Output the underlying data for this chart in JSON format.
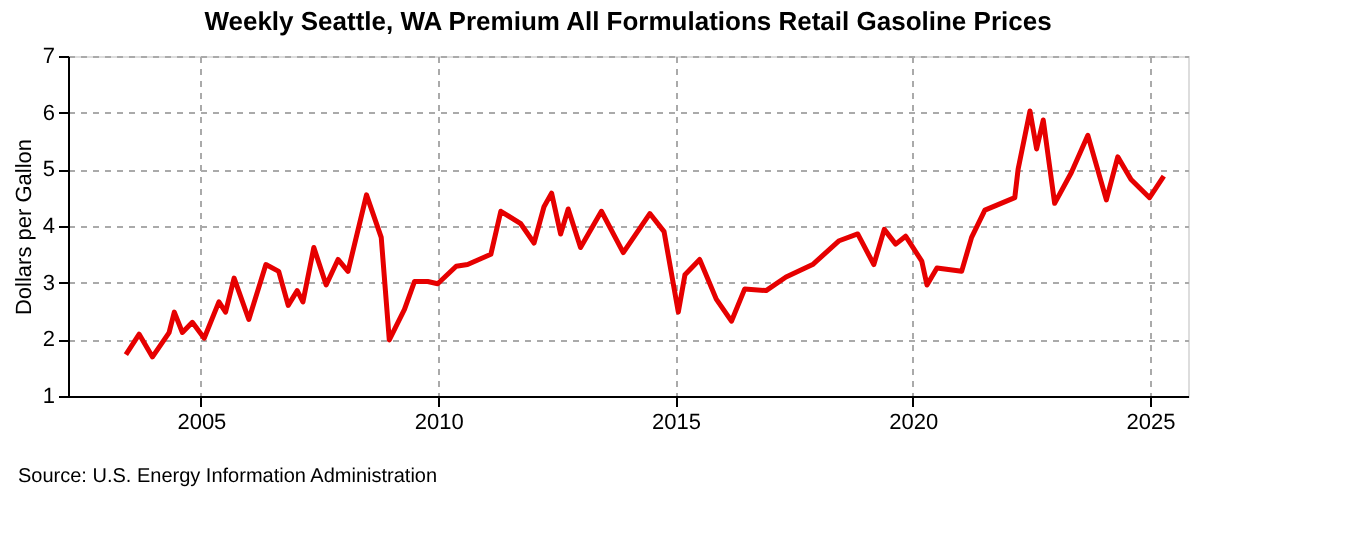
{
  "chart_data": {
    "type": "line",
    "title": "Weekly Seattle, WA Premium All Formulations Retail Gasoline Prices",
    "ylabel": "Dollars per Gallon",
    "annotations": [
      "Source: U.S. Energy Information Administration"
    ],
    "xlim": [
      2002.2,
      2025.8
    ],
    "xticks": [
      2005,
      2010,
      2015,
      2020,
      2025
    ],
    "ylim": [
      1,
      7
    ],
    "yticks": [
      1,
      2,
      3,
      4,
      5,
      6,
      7
    ],
    "grid": true,
    "marker": "none",
    "line_style": "solid",
    "series": [
      {
        "color": "#e60000",
        "x": [
          2003.42,
          2003.7,
          2003.98,
          2004.33,
          2004.44,
          2004.61,
          2004.82,
          2005.07,
          2005.38,
          2005.52,
          2005.7,
          2006.01,
          2006.37,
          2006.64,
          2006.84,
          2007.03,
          2007.15,
          2007.38,
          2007.64,
          2007.89,
          2008.1,
          2008.49,
          2008.8,
          2008.97,
          2009.29,
          2009.5,
          2009.78,
          2009.99,
          2010.38,
          2010.62,
          2011.11,
          2011.32,
          2011.74,
          2012.02,
          2012.23,
          2012.39,
          2012.58,
          2012.74,
          2013.0,
          2013.44,
          2013.9,
          2014.46,
          2014.76,
          2015.06,
          2015.2,
          2015.51,
          2015.86,
          2016.18,
          2016.46,
          2016.91,
          2017.33,
          2017.89,
          2018.45,
          2018.84,
          2019.18,
          2019.4,
          2019.64,
          2019.85,
          2020.19,
          2020.3,
          2020.51,
          2021.03,
          2021.24,
          2021.52,
          2022.15,
          2022.22,
          2022.47,
          2022.61,
          2022.75,
          2022.99,
          2023.34,
          2023.69,
          2024.08,
          2024.32,
          2024.6,
          2024.99,
          2025.29
        ],
        "values": [
          1.73,
          2.09,
          1.69,
          2.12,
          2.48,
          2.12,
          2.3,
          2.02,
          2.66,
          2.48,
          3.08,
          2.35,
          3.32,
          3.2,
          2.6,
          2.86,
          2.66,
          3.62,
          2.96,
          3.41,
          3.2,
          4.55,
          3.8,
          1.99,
          2.53,
          3.02,
          3.02,
          2.98,
          3.29,
          3.32,
          3.5,
          4.26,
          4.04,
          3.7,
          4.34,
          4.58,
          3.86,
          4.3,
          3.62,
          4.26,
          3.53,
          4.22,
          3.9,
          2.48,
          3.14,
          3.41,
          2.71,
          2.32,
          2.89,
          2.86,
          3.1,
          3.32,
          3.74,
          3.86,
          3.32,
          3.94,
          3.68,
          3.82,
          3.38,
          2.96,
          3.26,
          3.2,
          3.8,
          4.28,
          4.5,
          5.0,
          6.03,
          5.36,
          5.87,
          4.4,
          4.94,
          5.6,
          4.46,
          5.22,
          4.82,
          4.5,
          4.88
        ]
      }
    ]
  }
}
